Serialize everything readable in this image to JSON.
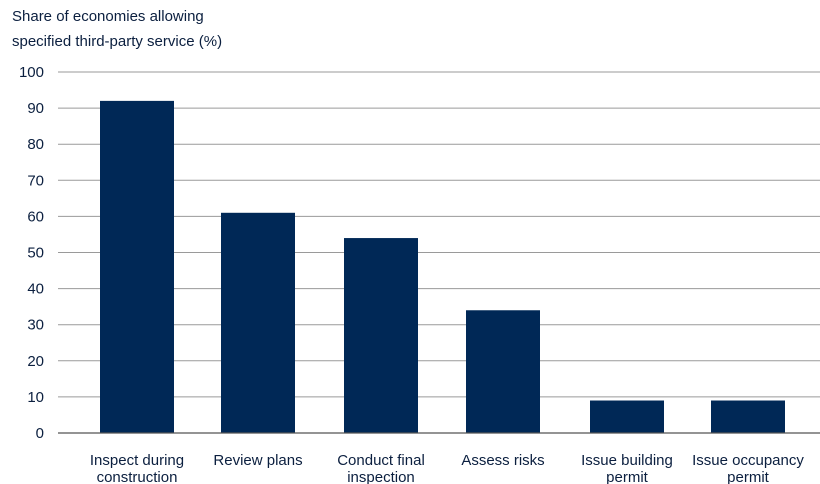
{
  "chart_data": {
    "type": "bar",
    "ylabel_lines": [
      "Share of economies allowing",
      "specified third-party service (%)"
    ],
    "categories": [
      [
        "Inspect during",
        "construction"
      ],
      [
        "Review plans"
      ],
      [
        "Conduct final",
        "inspection"
      ],
      [
        "Assess risks"
      ],
      [
        "Issue building",
        "permit"
      ],
      [
        "Issue occupancy",
        "permit"
      ]
    ],
    "values": [
      92,
      61,
      54,
      34,
      9,
      9
    ],
    "ylim": [
      0,
      100
    ],
    "yticks": [
      0,
      10,
      20,
      30,
      40,
      50,
      60,
      70,
      80,
      90,
      100
    ],
    "grid": true,
    "bar_color": "#002856"
  }
}
